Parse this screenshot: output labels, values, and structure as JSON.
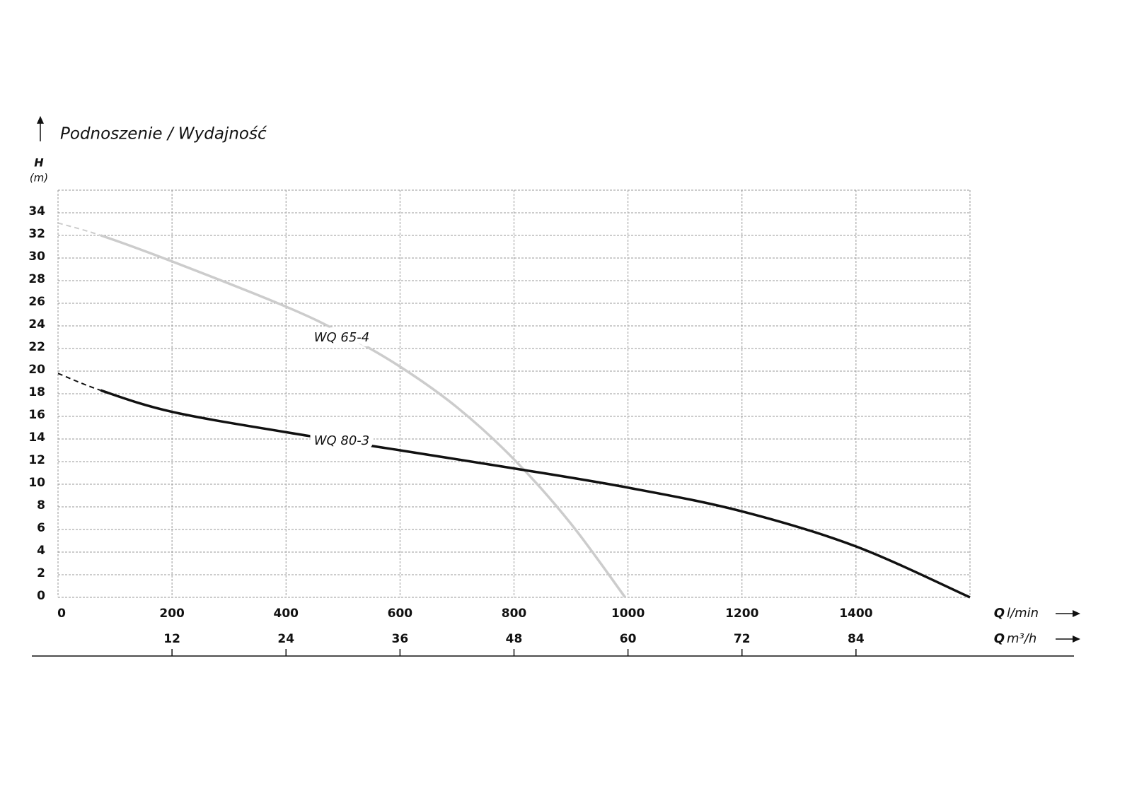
{
  "chart_data": {
    "type": "line",
    "title": "Podnoszenie / Wydajność",
    "y_label": {
      "symbol": "H",
      "unit": "(m)"
    },
    "x_label": {
      "symbol": "Q",
      "unit": "l/min"
    },
    "x2_label": {
      "symbol": "Q",
      "unit": "m³/h"
    },
    "xlim": [
      0,
      1600
    ],
    "xticks": [
      0,
      200,
      400,
      600,
      800,
      1000,
      1200,
      1400
    ],
    "x2lim": [
      0,
      96
    ],
    "x2ticks": [
      12,
      24,
      36,
      48,
      60,
      72,
      84
    ],
    "ylim": [
      0,
      36
    ],
    "yticks": [
      0,
      2,
      4,
      6,
      8,
      10,
      12,
      14,
      16,
      18,
      20,
      22,
      24,
      26,
      28,
      30,
      32,
      34
    ],
    "grid": true,
    "series": [
      {
        "name": "WQ 65-4",
        "color": "#cccccc",
        "dashed_segments": 1,
        "x": [
          0,
          75,
          200,
          400,
          500,
          600,
          700,
          800,
          900,
          995
        ],
        "values": [
          33.1,
          32,
          29.7,
          25.7,
          23.3,
          20.4,
          16.8,
          12.2,
          6.5,
          0
        ]
      },
      {
        "name": "WQ 80-3",
        "color": "#111111",
        "dashed_segments": 1,
        "x": [
          0,
          75,
          200,
          400,
          600,
          800,
          1000,
          1200,
          1400,
          1600
        ],
        "values": [
          19.8,
          18.3,
          16.4,
          14.6,
          13,
          11.4,
          9.7,
          7.6,
          4.5,
          0
        ]
      }
    ]
  }
}
